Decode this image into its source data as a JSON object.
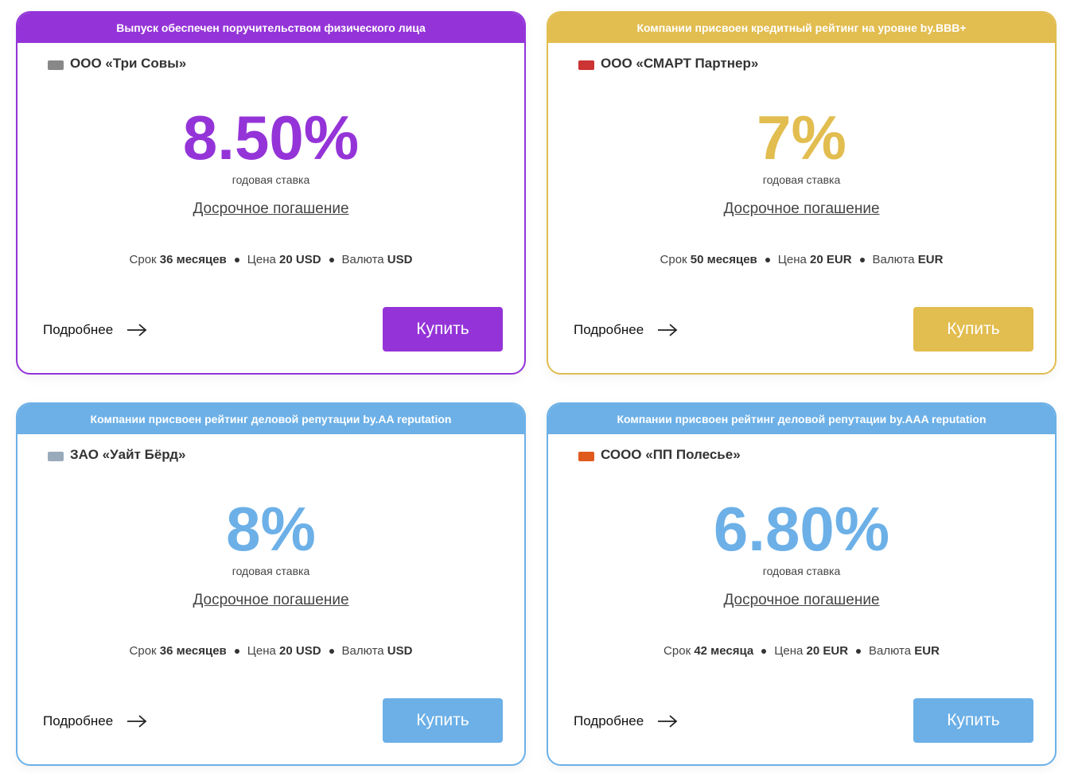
{
  "cards": [
    {
      "banner": "Выпуск обеспечен поручительством физического лица",
      "company": "ООО «Три Совы»",
      "rate": "8.50%",
      "rate_caption": "годовая ставка",
      "early_repayment": "Досрочное погашение",
      "term_label": "Срок",
      "term_value": "36 месяцев",
      "price_label": "Цена",
      "price_value": "20 USD",
      "currency_label": "Валюта",
      "currency_value": "USD",
      "details": "Подробнее",
      "buy": "Купить",
      "color": "#9434d8"
    },
    {
      "banner": "Компании присвоен кредитный рейтинг на уровне by.BBB+",
      "company": "ООО «СМАРТ Партнер»",
      "rate": "7%",
      "rate_caption": "годовая ставка",
      "early_repayment": "Досрочное погашение",
      "term_label": "Срок",
      "term_value": "50 месяцев",
      "price_label": "Цена",
      "price_value": "20 EUR",
      "currency_label": "Валюта",
      "currency_value": "EUR",
      "details": "Подробнее",
      "buy": "Купить",
      "color": "#e2bd4f"
    },
    {
      "banner": "Компании присвоен рейтинг деловой репутации by.AA reputation",
      "company": "ЗАО «Уайт Бёрд»",
      "rate": "8%",
      "rate_caption": "годовая ставка",
      "early_repayment": "Досрочное погашение",
      "term_label": "Срок",
      "term_value": "36 месяцев",
      "price_label": "Цена",
      "price_value": "20 USD",
      "currency_label": "Валюта",
      "currency_value": "USD",
      "details": "Подробнее",
      "buy": "Купить",
      "color": "#6cb0e7"
    },
    {
      "banner": "Компании присвоен рейтинг деловой репутации by.AAA reputation",
      "company": "СООО «ПП Полесье»",
      "rate": "6.80%",
      "rate_caption": "годовая ставка",
      "early_repayment": "Досрочное погашение",
      "term_label": "Срок",
      "term_value": "42 месяца",
      "price_label": "Цена",
      "price_value": "20 EUR",
      "currency_label": "Валюта",
      "currency_value": "EUR",
      "details": "Подробнее",
      "buy": "Купить",
      "color": "#6cb0e7"
    }
  ]
}
